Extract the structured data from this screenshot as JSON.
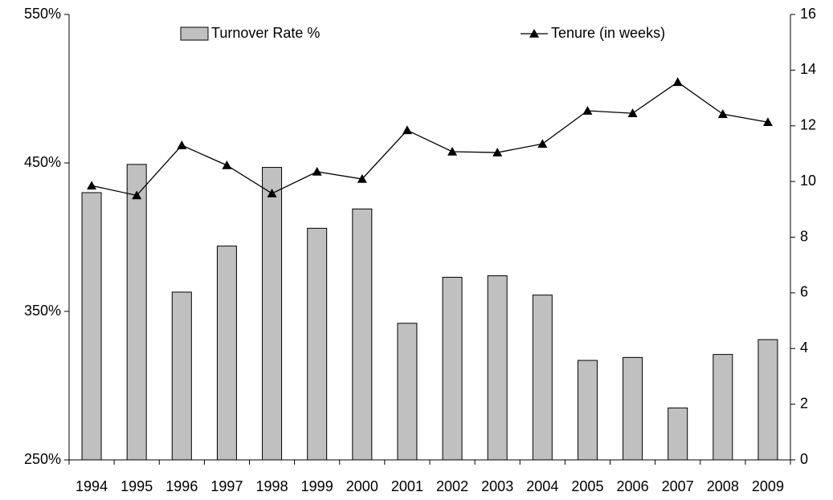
{
  "chart_data": {
    "type": "bar",
    "categories": [
      "1994",
      "1995",
      "1996",
      "1997",
      "1998",
      "1999",
      "2000",
      "2001",
      "2002",
      "2003",
      "2004",
      "2005",
      "2006",
      "2007",
      "2008",
      "2009"
    ],
    "series": [
      {
        "name": "Turnover Rate %",
        "type": "bar",
        "color": "#c0c0c0",
        "values": [
          430,
          449,
          363,
          394,
          447,
          406,
          419,
          342,
          373,
          374,
          361,
          317,
          319,
          285,
          321,
          331
        ]
      },
      {
        "name": "Tenure (in weeks)",
        "type": "line",
        "axis": "y2",
        "color": "#000000",
        "values": [
          9.85,
          9.5,
          11.3,
          10.58,
          9.57,
          10.35,
          10.09,
          11.84,
          11.07,
          11.04,
          11.35,
          12.54,
          12.45,
          13.57,
          12.42,
          12.13
        ]
      }
    ],
    "ylim": [
      250,
      550
    ],
    "yticks": [
      {
        "value": 250,
        "label": "250%"
      },
      {
        "value": 350,
        "label": "350%"
      },
      {
        "value": 450,
        "label": "450%"
      },
      {
        "value": 550,
        "label": "550%"
      }
    ],
    "y2lim": [
      0,
      16
    ],
    "y2ticks": [
      0,
      2,
      4,
      6,
      8,
      10,
      12,
      14,
      16
    ],
    "grid": false
  }
}
